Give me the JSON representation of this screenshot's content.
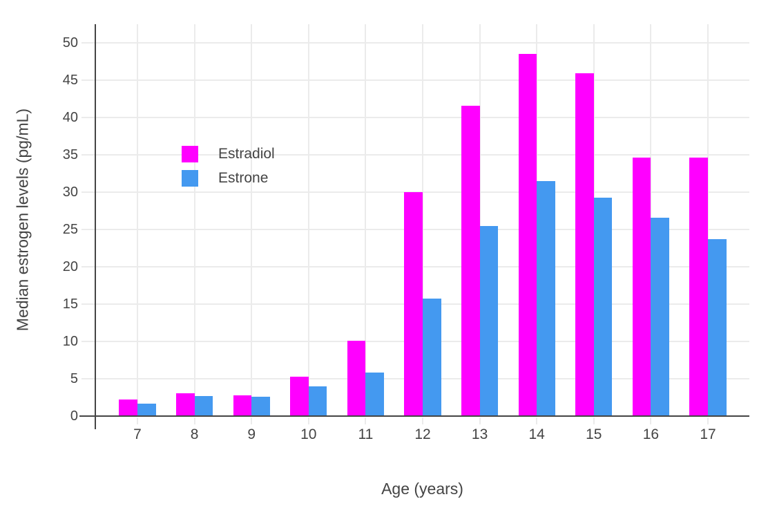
{
  "chart_data": {
    "type": "bar",
    "categories": [
      "7",
      "8",
      "9",
      "10",
      "11",
      "12",
      "13",
      "14",
      "15",
      "16",
      "17"
    ],
    "series": [
      {
        "name": "Estradiol",
        "color": "#FF00FF",
        "values": [
          2.2,
          3.1,
          2.8,
          5.3,
          10.1,
          30.0,
          41.6,
          48.5,
          45.9,
          34.6,
          34.6
        ]
      },
      {
        "name": "Estrone",
        "color": "#4499F0",
        "values": [
          1.7,
          2.7,
          2.6,
          4.0,
          5.8,
          15.7,
          25.5,
          31.5,
          29.3,
          26.6,
          23.7
        ]
      }
    ],
    "title": "",
    "xlabel": "Age (years)",
    "ylabel": "Median estrogen levels (pg/mL)",
    "ylim": [
      0,
      52.5
    ],
    "yticks": [
      "0",
      "5",
      "10",
      "15",
      "20",
      "25",
      "30",
      "35",
      "40",
      "45",
      "50"
    ],
    "grid": true,
    "legend_position": "inside-top-left"
  },
  "style": {
    "background": "#ffffff",
    "axis_line_color": "#444444",
    "grid_color": "#EBEBEB",
    "tick_label_color": "#444444"
  }
}
